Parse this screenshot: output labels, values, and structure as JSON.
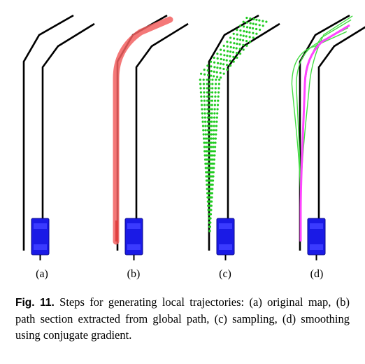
{
  "figure": {
    "panels": [
      {
        "id": "a",
        "label": "(a)"
      },
      {
        "id": "b",
        "label": "(b)"
      },
      {
        "id": "c",
        "label": "(c)"
      },
      {
        "id": "d",
        "label": "(d)"
      }
    ],
    "colors": {
      "road": "#000000",
      "vehicle": "#1a1ae6",
      "global_path": "#f26060",
      "samples": "#22cc22",
      "smoothed_path": "#ff44ff",
      "candidates": "#44dd44"
    }
  },
  "caption": {
    "number": "Fig. 11.",
    "text": "Steps for generating local trajectories: (a) original map, (b) path section extracted from global path, (c) sampling, (d) smoothing using conjugate gradient."
  }
}
